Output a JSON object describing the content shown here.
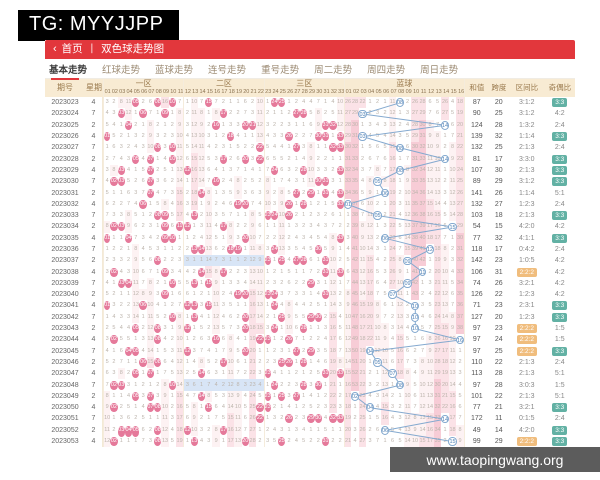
{
  "badge": "TG: MYYJJPP",
  "breadcrumb": {
    "back": "‹",
    "home": "首页",
    "sep": "丨",
    "title": "双色球走势图"
  },
  "tabs": [
    {
      "label": "基本走势",
      "active": true
    },
    {
      "label": "红球走势",
      "active": false
    },
    {
      "label": "蓝球走势",
      "active": false
    },
    {
      "label": "连号走势",
      "active": false
    },
    {
      "label": "重号走势",
      "active": false
    },
    {
      "label": "周二走势",
      "active": false
    },
    {
      "label": "周四走势",
      "active": false
    },
    {
      "label": "周日走势",
      "active": false
    }
  ],
  "table": {
    "period_label": "期号",
    "week_label": "星期",
    "zone1_label": "一区",
    "zone2_label": "二区",
    "zone3_label": "三区",
    "blue_label": "蓝球",
    "sum_label": "和值",
    "span_label": "跨度",
    "zone_ratio_label": "区间比",
    "odd_even_label": "奇偶比",
    "red_labels": [
      "01",
      "02",
      "03",
      "04",
      "05",
      "06",
      "07",
      "08",
      "09",
      "10",
      "11",
      "12",
      "13",
      "14",
      "15",
      "16",
      "17",
      "18",
      "19",
      "20",
      "21",
      "22",
      "23",
      "24",
      "25",
      "26",
      "27",
      "28",
      "29",
      "30",
      "31",
      "32",
      "33"
    ],
    "blue_labels": [
      "01",
      "02",
      "03",
      "04",
      "05",
      "06",
      "07",
      "08",
      "09",
      "10",
      "11",
      "12",
      "13",
      "14",
      "15",
      "16"
    ]
  },
  "seeds": {
    "red": [
      3,
      2,
      8,
      11,
      0,
      2,
      6,
      0,
      16,
      0,
      7,
      1,
      10,
      7,
      0,
      7,
      2,
      1,
      1,
      6,
      2,
      10,
      1,
      0,
      0,
      1,
      2,
      4,
      4,
      7,
      1,
      4,
      10
    ],
    "blue": [
      26,
      28,
      22,
      1,
      2,
      1,
      11,
      0,
      2,
      26,
      28,
      6,
      5,
      26,
      4,
      18
    ]
  },
  "bands": [
    {
      "row": 14,
      "from": 12,
      "to": 22
    },
    {
      "row": 25,
      "from": 12,
      "to": 22
    }
  ],
  "rows": [
    {
      "period": "2023023",
      "week": "4",
      "red": [
        5,
        8,
        10,
        15,
        24,
        25
      ],
      "blue": 8,
      "sum": "87",
      "span": "20",
      "zone": "3:1:2",
      "oe": "3:3",
      "zone_hl": false,
      "oe_hl": true
    },
    {
      "period": "2023024",
      "week": "7",
      "red": [
        3,
        6,
        9,
        17,
        27,
        28
      ],
      "blue": 3,
      "sum": "90",
      "span": "25",
      "zone": "3:1:2",
      "oe": "4:2",
      "zone_hl": false,
      "oe_hl": false
    },
    {
      "period": "2023025",
      "week": "2",
      "red": [
        4,
        16,
        20,
        21,
        31,
        32
      ],
      "blue": 14,
      "sum": "124",
      "span": "28",
      "zone": "1:3:2",
      "oe": "2:4",
      "zone_hl": false,
      "oe_hl": false
    },
    {
      "period": "2023026",
      "week": "4",
      "red": [
        1,
        18,
        26,
        30,
        31,
        33
      ],
      "blue": 3,
      "sum": "139",
      "span": "32",
      "zone": "1:1:4",
      "oe": "3:3",
      "zone_hl": false,
      "oe_hl": true
    },
    {
      "period": "2023027",
      "week": "7",
      "red": [
        8,
        10,
        22,
        27,
        32,
        33
      ],
      "blue": 8,
      "sum": "132",
      "span": "25",
      "zone": "2:1:3",
      "oe": "2:4",
      "zone_hl": false,
      "oe_hl": false
    },
    {
      "period": "2023028",
      "week": "2",
      "red": [
        5,
        7,
        10,
        17,
        20,
        22
      ],
      "blue": 14,
      "sum": "81",
      "span": "17",
      "zone": "3:3:0",
      "oe": "3:3",
      "zone_hl": false,
      "oe_hl": true
    },
    {
      "period": "2023029",
      "week": "4",
      "red": [
        3,
        7,
        12,
        24,
        28,
        33
      ],
      "blue": 8,
      "sum": "107",
      "span": "30",
      "zone": "2:1:3",
      "oe": "3:3",
      "zone_hl": false,
      "oe_hl": true
    },
    {
      "period": "2023030",
      "week": "7",
      "red": [
        2,
        3,
        7,
        16,
        30,
        31
      ],
      "blue": 5,
      "sum": "89",
      "span": "29",
      "zone": "3:1:2",
      "oe": "3:3",
      "zone_hl": false,
      "oe_hl": true
    },
    {
      "period": "2023031",
      "week": "2",
      "red": [
        7,
        14,
        27,
        29,
        31,
        33
      ],
      "blue": 6,
      "sum": "141",
      "span": "26",
      "zone": "1:1:4",
      "oe": "5:1",
      "zone_hl": false,
      "oe_hl": false
    },
    {
      "period": "2023032",
      "week": "4",
      "red": [
        6,
        19,
        20,
        26,
        28,
        33
      ],
      "blue": 1,
      "sum": "132",
      "span": "27",
      "zone": "1:2:3",
      "oe": "2:4",
      "zone_hl": false,
      "oe_hl": false
    },
    {
      "period": "2023033",
      "week": "7",
      "red": [
        8,
        9,
        13,
        23,
        24,
        26
      ],
      "blue": 5,
      "sum": "103",
      "span": "18",
      "zone": "2:1:3",
      "oe": "3:3",
      "zone_hl": false,
      "oe_hl": true
    },
    {
      "period": "2023034",
      "week": "2",
      "red": [
        2,
        3,
        9,
        11,
        12,
        17
      ],
      "blue": 15,
      "sum": "54",
      "span": "15",
      "zone": "4:2:0",
      "oe": "4:2",
      "zone_hl": false,
      "oe_hl": false
    },
    {
      "period": "2023035",
      "week": "4",
      "red": [
        1,
        4,
        9,
        10,
        20,
        33
      ],
      "blue": 6,
      "sum": "77",
      "span": "32",
      "zone": "4:1:1",
      "oe": "3:3",
      "zone_hl": false,
      "oe_hl": true
    },
    {
      "period": "2023036",
      "week": "7",
      "red": [
        13,
        14,
        18,
        19,
        24,
        30
      ],
      "blue": 12,
      "sum": "118",
      "span": "17",
      "zone": "0:4:2",
      "oe": "2:4",
      "zone_hl": false,
      "oe_hl": false
    },
    {
      "period": "2023037",
      "week": "2",
      "red": [
        8,
        23,
        25,
        27,
        28,
        31
      ],
      "blue": 9,
      "sum": "142",
      "span": "23",
      "zone": "1:0:5",
      "oe": "4:2",
      "zone_hl": false,
      "oe_hl": false
    },
    {
      "period": "2023038",
      "week": "4",
      "red": [
        2,
        9,
        14,
        17,
        31,
        33
      ],
      "blue": 11,
      "sum": "106",
      "span": "31",
      "zone": "2:2:2",
      "oe": "4:2",
      "zone_hl": true,
      "oe_hl": false
    },
    {
      "period": "2023039",
      "week": "7",
      "red": [
        3,
        4,
        10,
        13,
        15,
        29
      ],
      "blue": 9,
      "sum": "74",
      "span": "26",
      "zone": "3:2:1",
      "oe": "4:2",
      "zone_hl": false,
      "oe_hl": false
    },
    {
      "period": "2023040",
      "week": "2",
      "red": [
        9,
        19,
        20,
        23,
        24,
        31
      ],
      "blue": 7,
      "sum": "126",
      "span": "22",
      "zone": "1:2:3",
      "oe": "4:2",
      "zone_hl": false,
      "oe_hl": false
    },
    {
      "period": "2023041",
      "week": "4",
      "red": [
        1,
        6,
        12,
        13,
        15,
        24
      ],
      "blue": 10,
      "sum": "71",
      "span": "23",
      "zone": "2:3:1",
      "oe": "3:3",
      "zone_hl": false,
      "oe_hl": true
    },
    {
      "period": "2023042",
      "week": "7",
      "red": [
        10,
        13,
        20,
        25,
        29,
        30
      ],
      "blue": 10,
      "sum": "127",
      "span": "20",
      "zone": "1:2:3",
      "oe": "3:3",
      "zone_hl": false,
      "oe_hl": true
    },
    {
      "period": "2023043",
      "week": "2",
      "red": [
        5,
        8,
        12,
        20,
        24,
        28
      ],
      "blue": 10,
      "sum": "97",
      "span": "23",
      "zone": "2:2:2",
      "oe": "1:5",
      "zone_hl": true,
      "oe_hl": false
    },
    {
      "period": "2023044",
      "week": "4",
      "red": [
        2,
        8,
        16,
        22,
        23,
        26
      ],
      "blue": 16,
      "sum": "97",
      "span": "24",
      "zone": "2:2:2",
      "oe": "1:5",
      "zone_hl": true,
      "oe_hl": false
    },
    {
      "period": "2023045",
      "week": "7",
      "red": [
        4,
        5,
        12,
        20,
        27,
        29
      ],
      "blue": 4,
      "sum": "97",
      "span": "25",
      "zone": "2:2:2",
      "oe": "3:3",
      "zone_hl": true,
      "oe_hl": true
    },
    {
      "period": "2023046",
      "week": "2",
      "red": [
        6,
        8,
        17,
        25,
        26,
        28
      ],
      "blue": 5,
      "sum": "110",
      "span": "22",
      "zone": "2:1:3",
      "oe": "2:4",
      "zone_hl": false,
      "oe_hl": false
    },
    {
      "period": "2023047",
      "week": "4",
      "red": [
        5,
        7,
        14,
        23,
        31,
        33
      ],
      "blue": 7,
      "sum": "113",
      "span": "28",
      "zone": "2:1:3",
      "oe": "5:1",
      "zone_hl": false,
      "oe_hl": false
    },
    {
      "period": "2023048",
      "week": "7",
      "red": [
        2,
        3,
        10,
        24,
        28,
        30
      ],
      "blue": 8,
      "sum": "97",
      "span": "28",
      "zone": "3:0:3",
      "oe": "1:5",
      "zone_hl": false,
      "oe_hl": false
    },
    {
      "period": "2023049",
      "week": "2",
      "red": [
        5,
        7,
        14,
        23,
        25,
        27
      ],
      "blue": 2,
      "sum": "101",
      "span": "22",
      "zone": "2:1:3",
      "oe": "5:1",
      "zone_hl": false,
      "oe_hl": false
    },
    {
      "period": "2023050",
      "week": "4",
      "red": [
        2,
        7,
        8,
        15,
        22,
        23
      ],
      "blue": 4,
      "sum": "77",
      "span": "21",
      "zone": "3:2:1",
      "oe": "3:3",
      "zone_hl": false,
      "oe_hl": true
    },
    {
      "period": "2023051",
      "week": "7",
      "red": [
        22,
        26,
        29,
        30,
        32,
        33
      ],
      "blue": 14,
      "sum": "172",
      "span": "11",
      "zone": "0:1:5",
      "oe": "2:4",
      "zone_hl": false,
      "oe_hl": false
    },
    {
      "period": "2023052",
      "week": "2",
      "red": [
        3,
        4,
        5,
        8,
        12,
        17
      ],
      "blue": 6,
      "sum": "49",
      "span": "14",
      "zone": "4:2:0",
      "oe": "3:3",
      "zone_hl": false,
      "oe_hl": true,
      "consec": [
        3,
        4,
        5
      ]
    },
    {
      "period": "2023053",
      "week": "4",
      "red": [
        2,
        8,
        13,
        20,
        25,
        31
      ],
      "blue": 15,
      "sum": "99",
      "span": "29",
      "zone": "2:2:2",
      "oe": "3:3",
      "zone_hl": true,
      "oe_hl": true
    }
  ],
  "footer": "www.taopingwang.org",
  "colors": {
    "topbar_bg": "#000000",
    "header_red": "#e2373c",
    "ball_red": "#e5799a",
    "ball_blue_border": "#84a9cf",
    "badge_teal": "#62b1a4",
    "badge_orange": "#f0bd7d",
    "header_beige": "#f8ebd3",
    "footer_bg": "#5c5c5c"
  }
}
